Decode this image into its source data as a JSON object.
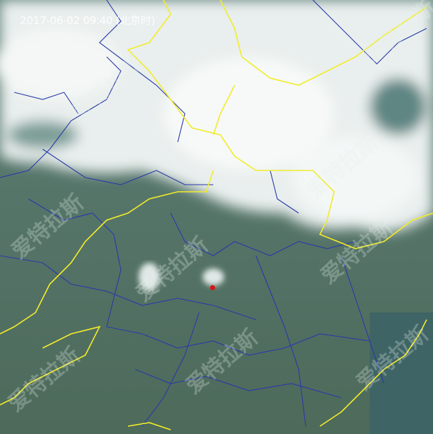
{
  "timestamp": "2017-06-02 09:40 (北京时)",
  "watermark": "爱特拉斯",
  "colors": {
    "land": "#4f6f63",
    "cloud": "#eef3f2",
    "province_border": "#f2ec2a",
    "county_border": "#2a3aa8",
    "marker": "#e01010"
  },
  "marker_icon": "red-dot-location"
}
